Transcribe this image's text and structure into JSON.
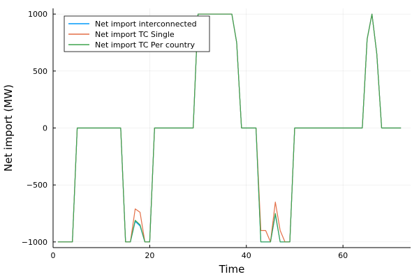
{
  "chart_data": {
    "type": "line",
    "xlabel": "Time",
    "ylabel": "Net import (MW)",
    "xlim": [
      0,
      74
    ],
    "ylim": [
      -1050,
      1050
    ],
    "xticks": [
      0,
      20,
      40,
      60
    ],
    "yticks": [
      -1000,
      -500,
      0,
      500,
      1000
    ],
    "ytick_labels": [
      "−1000",
      "−500",
      "0",
      "500",
      "1000"
    ],
    "grid": true,
    "legend_position": "top-left",
    "x": [
      1,
      2,
      3,
      4,
      5,
      6,
      7,
      8,
      9,
      10,
      11,
      12,
      13,
      14,
      15,
      16,
      17,
      18,
      19,
      20,
      21,
      22,
      23,
      24,
      25,
      26,
      27,
      28,
      29,
      30,
      31,
      32,
      33,
      34,
      35,
      36,
      37,
      38,
      39,
      40,
      41,
      42,
      43,
      44,
      45,
      46,
      47,
      48,
      49,
      50,
      51,
      52,
      53,
      54,
      55,
      56,
      57,
      58,
      59,
      60,
      61,
      62,
      63,
      64,
      65,
      66,
      67,
      68,
      69,
      70,
      71,
      72
    ],
    "series": [
      {
        "name": "Net import interconnected",
        "color": "#009AFA",
        "values": [
          -1000,
          -1000,
          -1000,
          -1000,
          0,
          0,
          0,
          0,
          0,
          0,
          0,
          0,
          0,
          0,
          -1000,
          -1000,
          -820,
          -860,
          -1000,
          -1000,
          0,
          0,
          0,
          0,
          0,
          0,
          0,
          0,
          0,
          1000,
          1000,
          1000,
          1000,
          1000,
          1000,
          1000,
          1000,
          750,
          0,
          0,
          0,
          0,
          -1000,
          -1000,
          -1000,
          -760,
          -1000,
          -1000,
          -1000,
          0,
          0,
          0,
          0,
          0,
          0,
          0,
          0,
          0,
          0,
          0,
          0,
          0,
          0,
          0,
          780,
          1000,
          650,
          0,
          0,
          0,
          0,
          0
        ]
      },
      {
        "name": "Net import TC Single",
        "color": "#E36F47",
        "values": [
          -1000,
          -1000,
          -1000,
          -1000,
          0,
          0,
          0,
          0,
          0,
          0,
          0,
          0,
          0,
          0,
          -1000,
          -1000,
          -710,
          -740,
          -1000,
          -1000,
          0,
          0,
          0,
          0,
          0,
          0,
          0,
          0,
          0,
          1000,
          1000,
          1000,
          1000,
          1000,
          1000,
          1000,
          1000,
          750,
          0,
          0,
          0,
          0,
          -900,
          -900,
          -1000,
          -650,
          -900,
          -1000,
          -1000,
          0,
          0,
          0,
          0,
          0,
          0,
          0,
          0,
          0,
          0,
          0,
          0,
          0,
          0,
          0,
          780,
          1000,
          650,
          0,
          0,
          0,
          0,
          0
        ]
      },
      {
        "name": "Net import TC Per country",
        "color": "#3EA44E",
        "values": [
          -1000,
          -1000,
          -1000,
          -1000,
          0,
          0,
          0,
          0,
          0,
          0,
          0,
          0,
          0,
          0,
          -1000,
          -1000,
          -810,
          -850,
          -1000,
          -1000,
          0,
          0,
          0,
          0,
          0,
          0,
          0,
          0,
          0,
          1000,
          1000,
          1000,
          1000,
          1000,
          1000,
          1000,
          1000,
          750,
          0,
          0,
          0,
          0,
          -1000,
          -1000,
          -1000,
          -750,
          -1000,
          -1000,
          -1000,
          0,
          0,
          0,
          0,
          0,
          0,
          0,
          0,
          0,
          0,
          0,
          0,
          0,
          0,
          0,
          780,
          1000,
          650,
          0,
          0,
          0,
          0,
          0
        ]
      }
    ]
  }
}
